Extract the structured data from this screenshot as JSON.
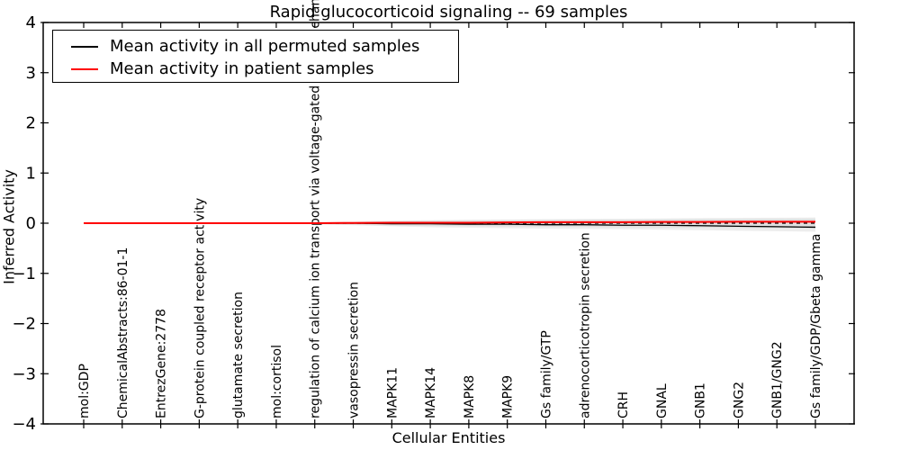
{
  "figure": {
    "title": "Rapid glucocorticoid signaling -- 69 samples",
    "xlabel": "Cellular Entities",
    "ylabel": "Inferred Activity",
    "legend": [
      {
        "label": "Mean activity in all permuted samples",
        "color": "#000000"
      },
      {
        "label": "Mean activity in patient samples",
        "color": "#ff0000"
      }
    ]
  },
  "chart_data": {
    "type": "line",
    "title": "Rapid glucocorticoid signaling -- 69 samples",
    "xlabel": "Cellular Entities",
    "ylabel": "Inferred Activity",
    "ylim": [
      -4,
      4
    ],
    "yticks": [
      -4,
      -3,
      -2,
      -1,
      0,
      1,
      2,
      3,
      4
    ],
    "grid": false,
    "legend_position": "upper left",
    "categories": [
      "mol:GDP",
      "ChemicalAbstracts:86-01-1",
      "EntrezGene:2778",
      "G-protein coupled receptor activity",
      "glutamate secretion",
      "mol:cortisol",
      "regulation of calcium ion transport via voltage-gated calcium channel",
      "vasopressin secretion",
      "MAPK11",
      "MAPK14",
      "MAPK8",
      "MAPK9",
      "Gs family/GTP",
      "adrenocorticotropin secretion",
      "CRH",
      "GNAL",
      "GNB1",
      "GNG2",
      "GNB1/GNG2",
      "Gs family/GDP/Gbeta gamma"
    ],
    "series": [
      {
        "name": "Mean activity in all permuted samples",
        "color": "#000000",
        "style": "solid",
        "width": 1.3,
        "values": [
          0,
          0,
          0,
          0,
          0,
          0,
          0,
          0,
          -0.01,
          -0.01,
          -0.02,
          -0.02,
          -0.03,
          -0.03,
          -0.04,
          -0.04,
          -0.05,
          -0.06,
          -0.07,
          -0.08
        ]
      },
      {
        "name": "Mean activity in patient samples",
        "color": "#ff0000",
        "style": "solid",
        "width": 2,
        "values": [
          0,
          0,
          0,
          0,
          0,
          0,
          0,
          0.005,
          0.01,
          0.01,
          0.01,
          0.015,
          0.02,
          0.02,
          0.02,
          0.025,
          0.025,
          0.03,
          0.03,
          0.03
        ]
      }
    ],
    "zero_line": {
      "y": 0,
      "color": "#000000",
      "style": "dashed"
    },
    "bands": [
      {
        "name": "permuted-confidence-band",
        "color": "#bdbdbd",
        "opacity": 0.28,
        "upper": [
          0.01,
          0.01,
          0.01,
          0.01,
          0.01,
          0.01,
          0.015,
          0.03,
          0.05,
          0.06,
          0.07,
          0.075,
          0.08,
          0.085,
          0.09,
          0.095,
          0.1,
          0.105,
          0.11,
          0.115
        ],
        "lower": [
          -0.01,
          -0.01,
          -0.01,
          -0.01,
          -0.01,
          -0.01,
          -0.02,
          -0.04,
          -0.06,
          -0.08,
          -0.09,
          -0.1,
          -0.11,
          -0.115,
          -0.12,
          -0.13,
          -0.14,
          -0.15,
          -0.16,
          -0.17
        ]
      },
      {
        "name": "patient-confidence-band",
        "color": "#bdbdbd",
        "opacity": 0.28,
        "upper": [
          0.008,
          0.008,
          0.008,
          0.008,
          0.008,
          0.008,
          0.012,
          0.025,
          0.04,
          0.05,
          0.055,
          0.06,
          0.065,
          0.07,
          0.07,
          0.075,
          0.08,
          0.08,
          0.085,
          0.09
        ],
        "lower": [
          -0.008,
          -0.008,
          -0.008,
          -0.008,
          -0.008,
          -0.008,
          -0.015,
          -0.03,
          -0.045,
          -0.055,
          -0.06,
          -0.065,
          -0.07,
          -0.075,
          -0.08,
          -0.085,
          -0.09,
          -0.095,
          -0.1,
          -0.105
        ]
      }
    ]
  }
}
